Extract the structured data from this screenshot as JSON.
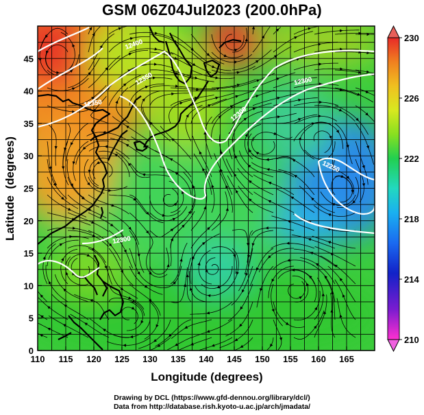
{
  "title": "GSM 06Z04Jul2023 (200.0hPa)",
  "x_axis": {
    "label": "Longitude (degrees)",
    "range": [
      110,
      170
    ],
    "ticks": [
      110,
      115,
      120,
      125,
      130,
      135,
      140,
      145,
      150,
      155,
      160,
      165
    ]
  },
  "y_axis": {
    "label": "Latitude  (degrees)",
    "range": [
      0,
      50
    ],
    "ticks": [
      0,
      5,
      10,
      15,
      20,
      25,
      30,
      35,
      40,
      45
    ]
  },
  "colorbar": {
    "ticks": [
      210,
      214,
      218,
      222,
      226,
      230
    ],
    "range": [
      210,
      230
    ],
    "colors": [
      "#ff30d0",
      "#7a1cd0",
      "#1222c8",
      "#1a6af0",
      "#1ab0f0",
      "#22d8c0",
      "#22d050",
      "#88e020",
      "#d8e820",
      "#f0c020",
      "#f08020",
      "#e82a28"
    ]
  },
  "contours": [
    {
      "label": "12400",
      "value": 12400
    },
    {
      "label": "12350",
      "value": 12350
    },
    {
      "label": "12300",
      "value": 12300
    },
    {
      "label": "12250",
      "value": 12250
    }
  ],
  "credits": [
    "Drawing by DCL (https://www.gfd-dennou.org/library/dcl/)",
    "Data from http://database.rish.kyoto-u.ac.jp/arch/jmadata/"
  ]
}
